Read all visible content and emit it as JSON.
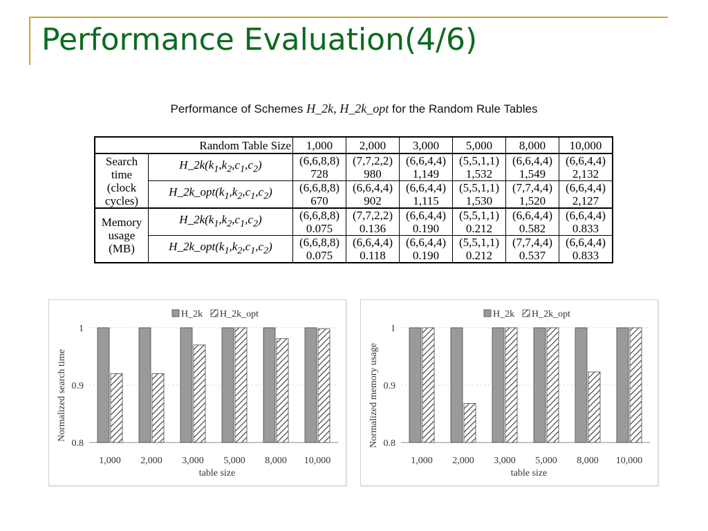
{
  "slide": {
    "title": "Performance Evaluation(4/6)"
  },
  "table": {
    "caption_prefix": "Performance of Schemes",
    "caption_scheme1": "H_2k,",
    "caption_scheme2": "H_2k_opt",
    "caption_suffix": "for the Random Rule Tables",
    "size_header": "Random Table Size",
    "sizes": [
      "1,000",
      "2,000",
      "3,000",
      "5,000",
      "8,000",
      "10,000"
    ],
    "groups": [
      {
        "label_lines": [
          "Search",
          "time",
          "(clock",
          "cycles)"
        ],
        "rows": [
          {
            "scheme": "H_2k(k1,k2,c1,c2)",
            "params": [
              "(6,6,8,8)",
              "(7,7,2,2)",
              "(6,6,4,4)",
              "(5,5,1,1)",
              "(6,6,4,4)",
              "(6,6,4,4)"
            ],
            "values": [
              "728",
              "980",
              "1,149",
              "1,532",
              "1,549",
              "2,132"
            ]
          },
          {
            "scheme": "H_2k_opt(k1,k2,c1,c2)",
            "params": [
              "(6,6,8,8)",
              "(6,6,4,4)",
              "(6,6,4,4)",
              "(5,5,1,1)",
              "(7,7,4,4)",
              "(6,6,4,4)"
            ],
            "values": [
              "670",
              "902",
              "1,115",
              "1,530",
              "1,520",
              "2,127"
            ]
          }
        ]
      },
      {
        "label_lines": [
          "Memory",
          "usage",
          "(MB)"
        ],
        "rows": [
          {
            "scheme": "H_2k(k1,k2,c1,c2)",
            "params": [
              "(6,6,8,8)",
              "(7,7,2,2)",
              "(6,6,4,4)",
              "(5,5,1,1)",
              "(6,6,4,4)",
              "(6,6,4,4)"
            ],
            "values": [
              "0.075",
              "0.136",
              "0.190",
              "0.212",
              "0.582",
              "0.833"
            ]
          },
          {
            "scheme": "H_2k_opt(k1,k2,c1,c2)",
            "params": [
              "(6,6,8,8)",
              "(6,6,4,4)",
              "(6,6,4,4)",
              "(5,5,1,1)",
              "(7,7,4,4)",
              "(6,6,4,4)"
            ],
            "values": [
              "0.075",
              "0.118",
              "0.190",
              "0.212",
              "0.537",
              "0.833"
            ]
          }
        ]
      }
    ]
  },
  "chart_data": [
    {
      "type": "bar",
      "title": "",
      "xlabel": "table size",
      "ylabel": "Normalized search time",
      "categories": [
        "1,000",
        "2,000",
        "3,000",
        "5,000",
        "8,000",
        "10,000"
      ],
      "ylim": [
        0.8,
        1
      ],
      "yticks": [
        "0.8",
        "0.9",
        "1"
      ],
      "grid": true,
      "legend_position": "top-center",
      "series": [
        {
          "name": "H_2k",
          "values": [
            1,
            1,
            1,
            1,
            1,
            1
          ],
          "color": "#9a9a9a"
        },
        {
          "name": "H_2k_opt",
          "values": [
            0.92,
            0.92,
            0.97,
            1.0,
            0.981,
            0.998
          ],
          "color": "#ffffff"
        }
      ]
    },
    {
      "type": "bar",
      "title": "",
      "xlabel": "table size",
      "ylabel": "Normalized memory usage",
      "categories": [
        "1,000",
        "2,000",
        "3,000",
        "5,000",
        "8,000",
        "10,000"
      ],
      "ylim": [
        0.8,
        1
      ],
      "yticks": [
        "0.8",
        "0.9",
        "1"
      ],
      "grid": true,
      "legend_position": "top-center",
      "series": [
        {
          "name": "H_2k",
          "values": [
            1,
            1,
            1,
            1,
            1,
            1
          ],
          "color": "#9a9a9a"
        },
        {
          "name": "H_2k_opt",
          "values": [
            1.0,
            0.868,
            1.0,
            1.0,
            0.923,
            1.0
          ],
          "color": "#ffffff"
        }
      ]
    }
  ]
}
